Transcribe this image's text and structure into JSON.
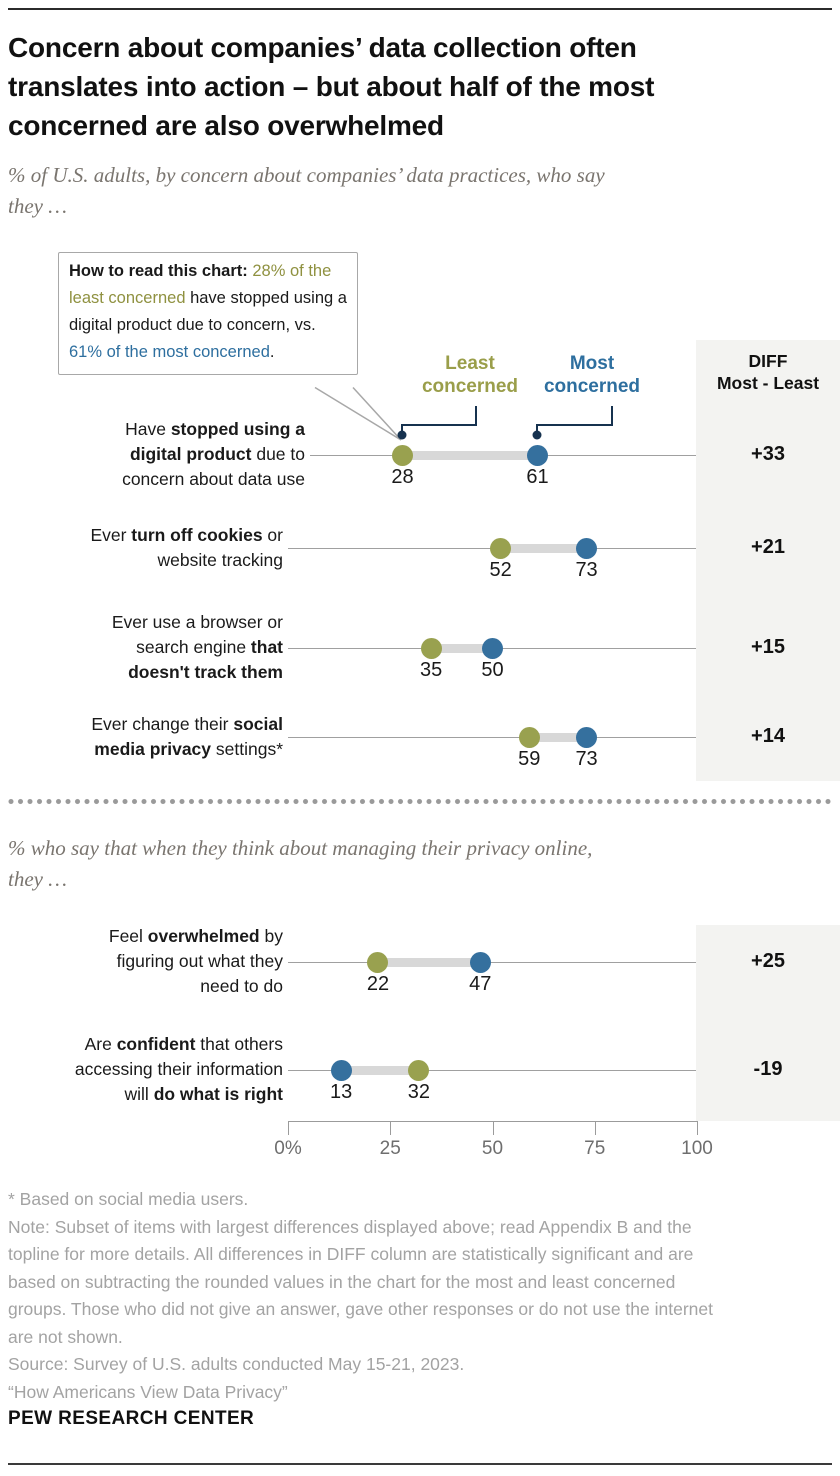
{
  "header": {
    "title_lines": [
      "Concern about companies’ data collection often",
      "translates into action – but about half of the most",
      "concerned are also overwhelmed"
    ],
    "subtitle1_lines": [
      "% of U.S. adults, by concern about companies’ data practices, who say",
      "they …"
    ],
    "subtitle2_lines": [
      "% who say that when they think about managing their privacy online,",
      "they …"
    ]
  },
  "annotation": {
    "parts": [
      {
        "text": "How to read this chart: ",
        "style": "bold"
      },
      {
        "text": "28% of the least concerned",
        "style": "least"
      },
      {
        "text": " have stopped using a digital product due to concern, vs. ",
        "style": "plain"
      },
      {
        "text": "61% of the most concerned",
        "style": "most"
      },
      {
        "text": ".",
        "style": "plain"
      }
    ]
  },
  "legend": {
    "least_label": "Least concerned",
    "most_label": "Most concerned"
  },
  "diff_header_lines": [
    "DIFF",
    "Most - Least"
  ],
  "colors": {
    "least_dot": "#99a14f",
    "most_dot": "#35709e",
    "least_text": "#9a9e4a",
    "most_text": "#2e6f9f",
    "navy_connector": "#16324f",
    "bar": "#d8d8d8",
    "panel_bg": "#f3f3f1"
  },
  "chart_data": {
    "type": "dumbbell",
    "x_axis": {
      "min": 0,
      "max": 100,
      "ticks": [
        {
          "label": "0%",
          "value": 0
        },
        {
          "label": "25",
          "value": 25
        },
        {
          "label": "50",
          "value": 50
        },
        {
          "label": "75",
          "value": 75
        },
        {
          "label": "100",
          "value": 100
        }
      ]
    },
    "series_names": [
      "Least concerned",
      "Most concerned"
    ],
    "sections": [
      {
        "rows": [
          {
            "label_lines": [
              [
                [
                  "Have ",
                  0
                ],
                [
                  "stopped using a",
                  1
                ]
              ],
              [
                [
                  "digital product",
                  1
                ],
                [
                  " due to",
                  0
                ]
              ],
              [
                [
                  "concern about data use",
                  0
                ]
              ]
            ],
            "least": 28,
            "most": 61,
            "diff": "+33"
          },
          {
            "label_lines": [
              [
                [
                  "Ever ",
                  0
                ],
                [
                  "turn off cookies",
                  1
                ],
                [
                  " or",
                  0
                ]
              ],
              [
                [
                  "website tracking",
                  0
                ]
              ]
            ],
            "least": 52,
            "most": 73,
            "diff": "+21"
          },
          {
            "label_lines": [
              [
                [
                  "Ever use a browser or",
                  0
                ]
              ],
              [
                [
                  "search engine ",
                  0
                ],
                [
                  "that",
                  1
                ]
              ],
              [
                [
                  "doesn't track them",
                  1
                ]
              ]
            ],
            "least": 35,
            "most": 50,
            "diff": "+15"
          },
          {
            "label_lines": [
              [
                [
                  "Ever change their ",
                  0
                ],
                [
                  "social",
                  1
                ]
              ],
              [
                [
                  "media privacy",
                  1
                ],
                [
                  " settings*",
                  0
                ]
              ]
            ],
            "least": 59,
            "most": 73,
            "diff": "+14"
          }
        ]
      },
      {
        "rows": [
          {
            "label_lines": [
              [
                [
                  "Feel ",
                  0
                ],
                [
                  "overwhelmed",
                  1
                ],
                [
                  " by",
                  0
                ]
              ],
              [
                [
                  "figuring out what they",
                  0
                ]
              ],
              [
                [
                  "need to do",
                  0
                ]
              ]
            ],
            "least": 22,
            "most": 47,
            "diff": "+25"
          },
          {
            "label_lines": [
              [
                [
                  "Are ",
                  0
                ],
                [
                  "confident",
                  1
                ],
                [
                  " that others",
                  0
                ]
              ],
              [
                [
                  "accessing their information",
                  0
                ]
              ],
              [
                [
                  "will ",
                  0
                ],
                [
                  "do what is right",
                  1
                ]
              ]
            ],
            "least": 32,
            "most": 13,
            "diff": "-19"
          }
        ]
      }
    ]
  },
  "footnotes": {
    "asterisk": "* Based on social media users.",
    "note_lines": [
      "Note: Subset of items with largest differences displayed above; read Appendix B and the",
      "topline for more details. All differences in DIFF column are statistically significant and are",
      "based on subtracting the rounded values in the chart for the most and least concerned",
      "groups. Those who did not give an answer, gave other responses or do not use the internet",
      "are not shown."
    ],
    "source": "Source: Survey of U.S. adults conducted May 15-21, 2023.",
    "report": "“How Americans View Data Privacy”"
  },
  "branding": "PEW RESEARCH CENTER"
}
